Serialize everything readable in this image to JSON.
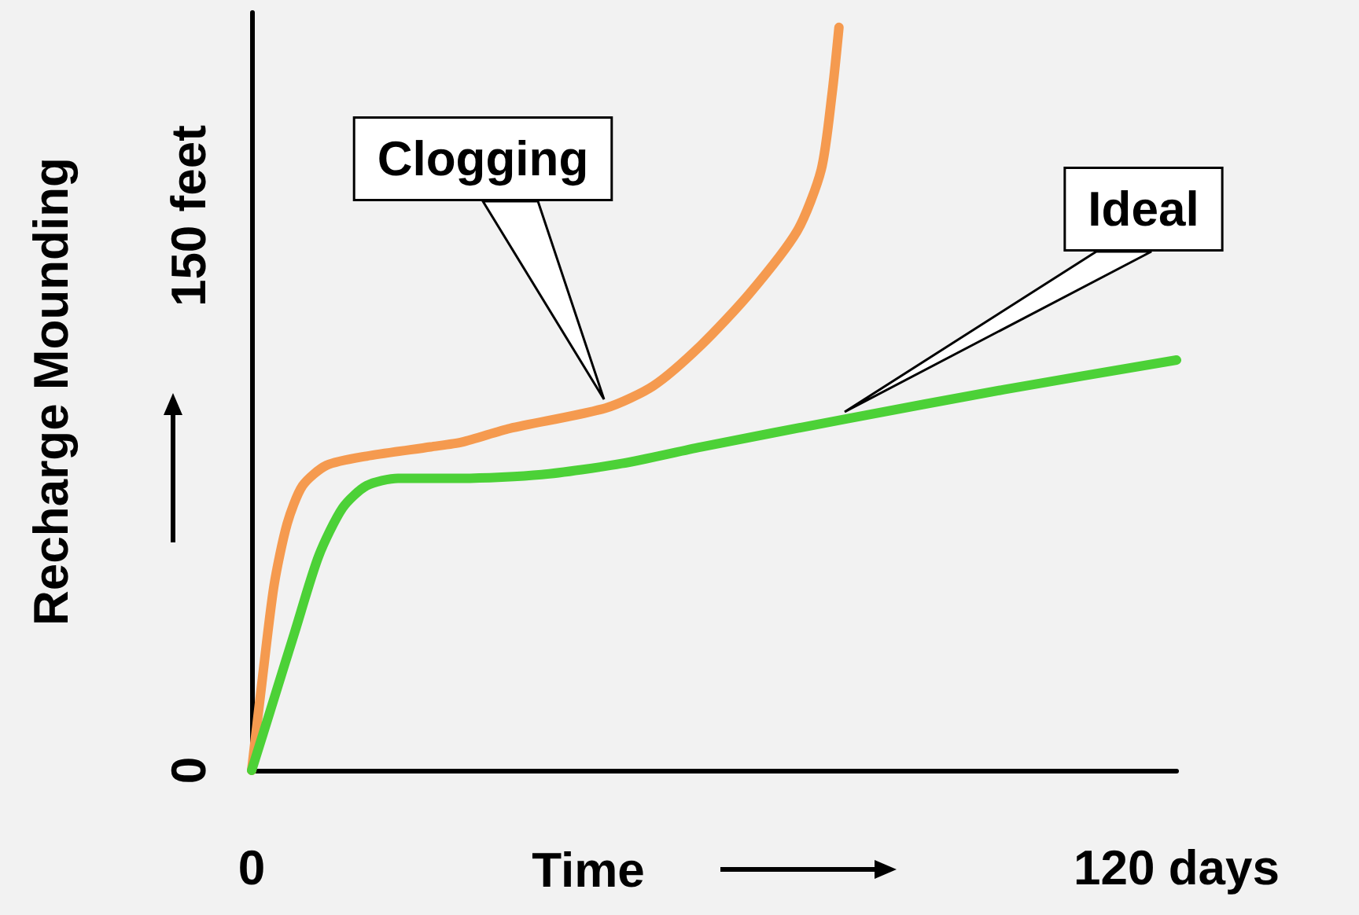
{
  "chart_data": {
    "type": "line",
    "xlabel": "Time",
    "ylabel": "Recharge Mounding",
    "xlim": [
      0,
      120
    ],
    "xticks": [
      0,
      {
        "value": 120,
        "label": "120 days"
      }
    ],
    "ylim": [
      0,
      205
    ],
    "yticks": [
      0,
      {
        "value": 150,
        "label": "150 feet"
      }
    ],
    "grid": false,
    "marker": "none",
    "line_style": "solid",
    "series": [
      {
        "color": "#f59a4f",
        "x": [
          0,
          1.4,
          2.9,
          4.6,
          6.6,
          9.7,
          14.9,
          23.2,
          27.3,
          33.5,
          45.9,
          52.1,
          58.3,
          64.6,
          70.8,
          73.9,
          75.3,
          76.2
        ],
        "values": [
          0,
          25,
          50,
          66.7,
          77,
          82.5,
          85,
          87.5,
          88.8,
          92.5,
          98,
          104,
          115,
          129,
          146,
          162.5,
          183,
          201
        ]
      },
      {
        "color": "#4cd137",
        "x": [
          0,
          2.5,
          5.6,
          8.7,
          11.8,
          14.9,
          19,
          27.3,
          37.6,
          48,
          58.3,
          76.9,
          97.6,
          120
        ],
        "values": [
          0,
          16.7,
          37.5,
          58,
          71,
          77,
          79,
          79,
          80,
          83,
          87.5,
          95,
          103,
          111
        ]
      }
    ],
    "annotations": [
      "Clogging",
      "Ideal"
    ]
  }
}
